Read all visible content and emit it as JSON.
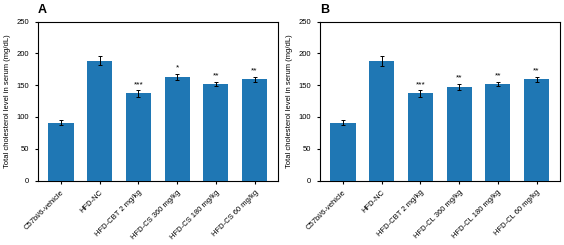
{
  "chart_data": [
    {
      "type": "bar",
      "title": "A",
      "categories": [
        "C57bl/6-vehicle",
        "HFD-NC",
        "HFD-CBT 2 mg/kg",
        "HFD-CS 360 mg/kg",
        "HFD-CS 180 mg/kg",
        "HFD-CS 60 mg/kg"
      ],
      "values": [
        91,
        188,
        137,
        163,
        152,
        159
      ],
      "errors": [
        4,
        7,
        5,
        5,
        3,
        4
      ],
      "ylabel": "Total cholesterol level in serum (mg/dL)",
      "ylim": [
        0,
        250
      ],
      "yticks": [
        0,
        50,
        100,
        150,
        200,
        250
      ],
      "annotations": [
        {
          "category": "HFD-CBT 2 mg/kg",
          "text": "***"
        },
        {
          "category": "HFD-CS 360 mg/kg",
          "text": "*"
        },
        {
          "category": "HFD-CS 180 mg/kg",
          "text": "**"
        },
        {
          "category": "HFD-CS 60 mg/kg",
          "text": "**"
        }
      ]
    },
    {
      "type": "bar",
      "title": "B",
      "categories": [
        "C57bl/6-vehicle",
        "HFD-NC",
        "HFD-CBT 2 mg/kg",
        "HFD-CL 360 mg/kg",
        "HFD-CL 180 mg/kg",
        "HFD-CL 60 mg/kg"
      ],
      "values": [
        91,
        188,
        137,
        147,
        152,
        159
      ],
      "errors": [
        4,
        8,
        5,
        5,
        3,
        4
      ],
      "ylabel": "Total cholesterol level in serum (mg/dL)",
      "ylim": [
        0,
        250
      ],
      "yticks": [
        0,
        50,
        100,
        150,
        200,
        250
      ],
      "annotations": [
        {
          "category": "HFD-CBT 2 mg/kg",
          "text": "***"
        },
        {
          "category": "HFD-CL 360 mg/kg",
          "text": "**"
        },
        {
          "category": "HFD-CL 180 mg/kg",
          "text": "**"
        },
        {
          "category": "HFD-CL 60 mg/kg",
          "text": "**"
        }
      ]
    }
  ]
}
